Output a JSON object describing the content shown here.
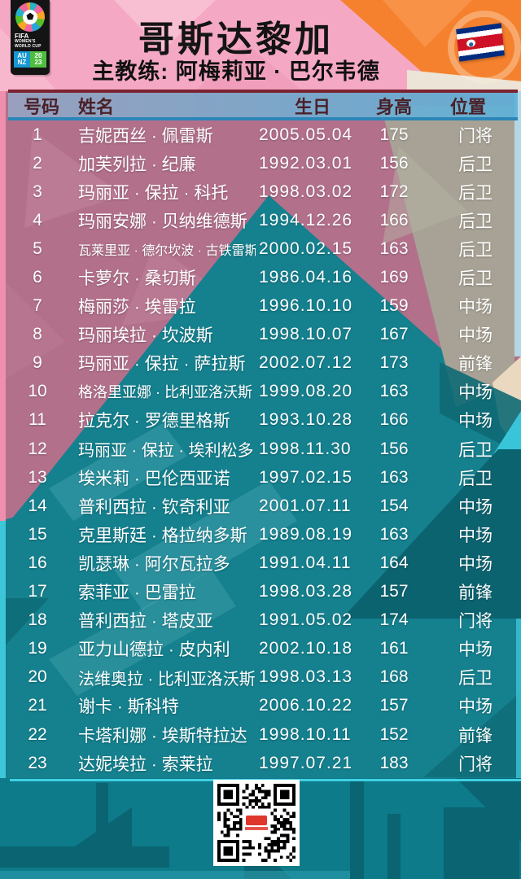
{
  "header": {
    "title": "哥斯达黎加",
    "coach_label": "主教练: 阿梅莉亚 · 巴尔韦德",
    "logo": {
      "fifa": "FIFA",
      "womens": "WOMEN'S",
      "worldcup": "WORLD CUP",
      "au": "AU",
      "nz": "NZ",
      "y20": "20",
      "y23": "23"
    }
  },
  "table": {
    "columns": [
      "号码",
      "姓名",
      "生日",
      "身高",
      "位置"
    ],
    "rows": [
      {
        "no": "1",
        "name": "吉妮西丝 · 佩雷斯",
        "dob": "2005.05.04",
        "height": "175",
        "pos": "门将"
      },
      {
        "no": "2",
        "name": "加芙列拉 · 纪廉",
        "dob": "1992.03.01",
        "height": "156",
        "pos": "后卫"
      },
      {
        "no": "3",
        "name": "玛丽亚 · 保拉 · 科托",
        "dob": "1998.03.02",
        "height": "172",
        "pos": "后卫"
      },
      {
        "no": "4",
        "name": "玛丽安娜 · 贝纳维德斯",
        "dob": "1994.12.26",
        "height": "166",
        "pos": "后卫"
      },
      {
        "no": "5",
        "name": "瓦莱里亚 · 德尔坎波 · 古铁雷斯",
        "dob": "2000.02.15",
        "height": "163",
        "pos": "后卫"
      },
      {
        "no": "6",
        "name": "卡萝尔 · 桑切斯",
        "dob": "1986.04.16",
        "height": "169",
        "pos": "后卫"
      },
      {
        "no": "7",
        "name": "梅丽莎 · 埃雷拉",
        "dob": "1996.10.10",
        "height": "159",
        "pos": "中场"
      },
      {
        "no": "8",
        "name": "玛丽埃拉 · 坎波斯",
        "dob": "1998.10.07",
        "height": "167",
        "pos": "中场"
      },
      {
        "no": "9",
        "name": "玛丽亚 · 保拉 · 萨拉斯",
        "dob": "2002.07.12",
        "height": "173",
        "pos": "前锋"
      },
      {
        "no": "10",
        "name": "格洛里亚娜 · 比利亚洛沃斯",
        "dob": "1999.08.20",
        "height": "163",
        "pos": "中场"
      },
      {
        "no": "11",
        "name": "拉克尔 · 罗德里格斯",
        "dob": "1993.10.28",
        "height": "166",
        "pos": "中场"
      },
      {
        "no": "12",
        "name": "玛丽亚 · 保拉 · 埃利松多",
        "dob": "1998.11.30",
        "height": "156",
        "pos": "后卫"
      },
      {
        "no": "13",
        "name": "埃米莉 · 巴伦西亚诺",
        "dob": "1997.02.15",
        "height": "163",
        "pos": "后卫"
      },
      {
        "no": "14",
        "name": "普利西拉 · 钦奇利亚",
        "dob": "2001.07.11",
        "height": "154",
        "pos": "中场"
      },
      {
        "no": "15",
        "name": "克里斯廷 · 格拉纳多斯",
        "dob": "1989.08.19",
        "height": "163",
        "pos": "中场"
      },
      {
        "no": "16",
        "name": "凯瑟琳 · 阿尔瓦拉多",
        "dob": "1991.04.11",
        "height": "164",
        "pos": "中场"
      },
      {
        "no": "17",
        "name": "索菲亚 · 巴雷拉",
        "dob": "1998.03.28",
        "height": "157",
        "pos": "前锋"
      },
      {
        "no": "18",
        "name": "普利西拉 · 塔皮亚",
        "dob": "1991.05.02",
        "height": "174",
        "pos": "门将"
      },
      {
        "no": "19",
        "name": "亚力山德拉 · 皮内利",
        "dob": "2002.10.18",
        "height": "161",
        "pos": "中场"
      },
      {
        "no": "20",
        "name": "法维奥拉 · 比利亚洛沃斯",
        "dob": "1998.03.13",
        "height": "168",
        "pos": "后卫"
      },
      {
        "no": "21",
        "name": "谢卡 · 斯科特",
        "dob": "2006.10.22",
        "height": "157",
        "pos": "中场"
      },
      {
        "no": "22",
        "name": "卡塔利娜 · 埃斯特拉达",
        "dob": "1998.10.11",
        "height": "152",
        "pos": "前锋"
      },
      {
        "no": "23",
        "name": "达妮埃拉 · 索莱拉",
        "dob": "1997.07.21",
        "height": "183",
        "pos": "门将"
      }
    ]
  },
  "colors": {
    "teal": "#15808e",
    "dark_teal": "#0c6370",
    "bright_cyan": "#38c5da",
    "rose": "#b2708b",
    "beige": "#a7a295",
    "pink": "#f4a8c3",
    "orange": "#f5812e",
    "cream": "#ece4d6",
    "header_bg_blue": "#5aaed6",
    "header_text": "#4a2027",
    "header_border_top": "#7c2331",
    "header_border_bottom": "#2c86b8",
    "row_text": "#ffffff",
    "title_text": "#141414",
    "flag_blue": "#002b7f",
    "flag_red": "#ce1126",
    "qr_red": "#e0372c",
    "logo_black": "#141414",
    "logo_au_nz_blue": "#1798d3",
    "logo_year_green": "#4fbe3f"
  }
}
